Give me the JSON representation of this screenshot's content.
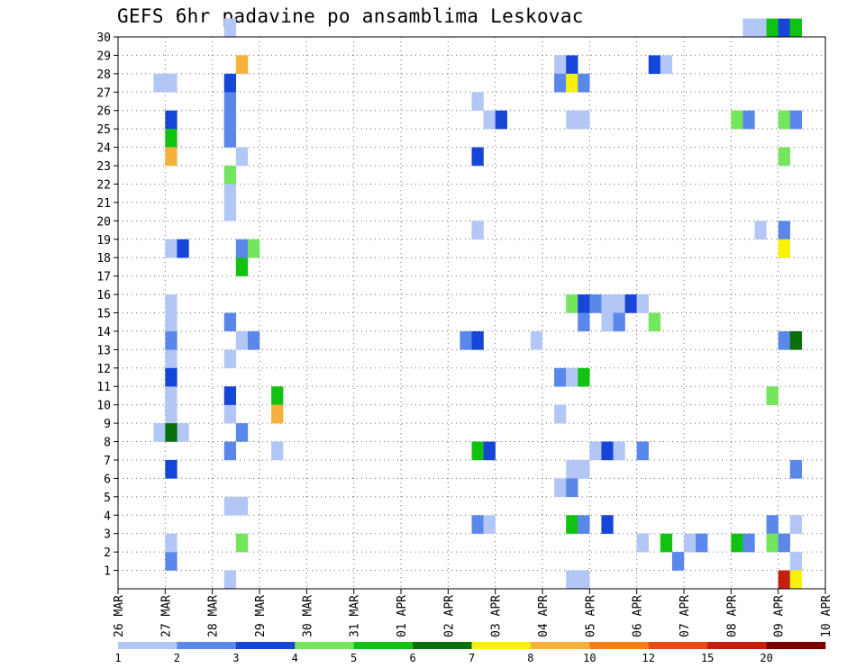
{
  "title": "GEFS 6hr padavine po ansamblima Leskovac",
  "chart_data": {
    "type": "heatmap",
    "title": "GEFS 6hr padavine po ansamblima Leskovac",
    "x_ticks": [
      "26 MAR",
      "27 MAR",
      "28 MAR",
      "29 MAR",
      "30 MAR",
      "31 MAR",
      "01 APR",
      "02 APR",
      "03 APR",
      "04 APR",
      "05 APR",
      "06 APR",
      "07 APR",
      "08 APR",
      "09 APR",
      "10 APR"
    ],
    "x_range": [
      0,
      60
    ],
    "y_ticks": [
      1,
      2,
      3,
      4,
      5,
      6,
      7,
      8,
      9,
      10,
      11,
      12,
      13,
      14,
      15,
      16,
      17,
      18,
      19,
      20,
      21,
      22,
      23,
      24,
      25,
      26,
      27,
      28,
      29,
      30
    ],
    "y_range": [
      0,
      30
    ],
    "grid": true,
    "legend": {
      "placement": "bottom",
      "labels": [
        "1",
        "2",
        "3",
        "4",
        "5",
        "6",
        "7",
        "8",
        "10",
        "12",
        "15",
        "20"
      ],
      "colors": [
        "#b3c7f7",
        "#5a87ea",
        "#1646d8",
        "#74e65c",
        "#12c212",
        "#0a6e0a",
        "#f9f10a",
        "#f5b13c",
        "#f57d14",
        "#e84a14",
        "#c41e0e",
        "#7a0000"
      ]
    },
    "color_by_class": {
      "1": "#b3c7f7",
      "2": "#5a87ea",
      "3": "#1646d8",
      "4": "#74e65c",
      "5": "#12c212",
      "6": "#0a6e0a",
      "7": "#f9f10a",
      "8": "#f5b13c",
      "10": "#f57d14",
      "12": "#e84a14",
      "15": "#c41e0e",
      "20": "#7a0000"
    },
    "cells": [
      [
        4,
        1,
        2
      ],
      [
        9,
        30,
        1
      ],
      [
        9,
        0,
        1
      ],
      [
        3,
        27,
        1
      ],
      [
        4,
        27,
        1
      ],
      [
        4,
        18,
        1
      ],
      [
        4,
        15,
        1
      ],
      [
        4,
        14,
        1
      ],
      [
        4,
        12,
        1
      ],
      [
        4,
        10,
        1
      ],
      [
        4,
        9,
        1
      ],
      [
        3,
        8,
        1
      ],
      [
        5,
        8,
        1
      ],
      [
        4,
        2,
        1
      ],
      [
        4,
        25,
        3
      ],
      [
        4,
        24,
        5
      ],
      [
        4,
        23,
        8
      ],
      [
        5,
        18,
        3
      ],
      [
        4,
        13,
        2
      ],
      [
        4,
        11,
        3
      ],
      [
        4,
        8,
        6
      ],
      [
        4,
        6,
        3
      ],
      [
        9,
        26,
        2
      ],
      [
        9,
        25,
        2
      ],
      [
        9,
        24,
        1
      ],
      [
        10,
        23,
        1
      ],
      [
        9,
        21,
        1
      ],
      [
        9,
        20,
        1
      ],
      [
        10,
        13,
        1
      ],
      [
        9,
        12,
        1
      ],
      [
        9,
        9,
        1
      ],
      [
        9,
        4,
        1
      ],
      [
        10,
        4,
        1
      ],
      [
        10,
        2,
        4
      ],
      [
        9,
        7,
        2
      ],
      [
        10,
        8,
        2
      ],
      [
        10,
        28,
        8
      ],
      [
        9,
        27,
        3
      ],
      [
        9,
        25,
        2
      ],
      [
        9,
        24,
        2
      ],
      [
        9,
        22,
        4
      ],
      [
        10,
        18,
        2
      ],
      [
        11,
        18,
        4
      ],
      [
        10,
        17,
        5
      ],
      [
        9,
        14,
        2
      ],
      [
        11,
        13,
        2
      ],
      [
        9,
        10,
        3
      ],
      [
        13,
        10,
        5
      ],
      [
        13,
        9,
        8
      ],
      [
        13,
        7,
        1
      ],
      [
        30,
        26,
        1
      ],
      [
        31,
        25,
        1
      ],
      [
        32,
        25,
        3
      ],
      [
        30,
        23,
        3
      ],
      [
        30,
        19,
        1
      ],
      [
        29,
        13,
        2
      ],
      [
        30,
        13,
        3
      ],
      [
        35,
        13,
        1
      ],
      [
        30,
        7,
        5
      ],
      [
        31,
        7,
        3
      ],
      [
        30,
        3,
        2
      ],
      [
        31,
        3,
        1
      ],
      [
        37,
        28,
        1
      ],
      [
        38,
        28,
        3
      ],
      [
        37,
        27,
        2
      ],
      [
        38,
        27,
        7
      ],
      [
        39,
        27,
        2
      ],
      [
        38,
        25,
        1
      ],
      [
        39,
        25,
        1
      ],
      [
        38,
        15,
        4
      ],
      [
        39,
        15,
        3
      ],
      [
        40,
        15,
        2
      ],
      [
        41,
        15,
        1
      ],
      [
        42,
        15,
        1
      ],
      [
        43,
        15,
        3
      ],
      [
        44,
        15,
        1
      ],
      [
        39,
        14,
        2
      ],
      [
        41,
        14,
        1
      ],
      [
        42,
        14,
        2
      ],
      [
        37,
        11,
        2
      ],
      [
        38,
        11,
        1
      ],
      [
        39,
        11,
        5
      ],
      [
        37,
        9,
        1
      ],
      [
        40,
        7,
        1
      ],
      [
        41,
        7,
        3
      ],
      [
        42,
        7,
        1
      ],
      [
        44,
        7,
        2
      ],
      [
        38,
        6,
        1
      ],
      [
        39,
        6,
        1
      ],
      [
        37,
        5,
        1
      ],
      [
        38,
        5,
        2
      ],
      [
        38,
        3,
        5
      ],
      [
        39,
        3,
        2
      ],
      [
        41,
        3,
        3
      ],
      [
        39,
        0,
        1
      ],
      [
        38,
        0,
        1
      ],
      [
        45,
        28,
        3
      ],
      [
        46,
        28,
        1
      ],
      [
        45,
        14,
        4
      ],
      [
        44,
        2,
        1
      ],
      [
        46,
        2,
        5
      ],
      [
        48,
        2,
        1
      ],
      [
        49,
        2,
        2
      ],
      [
        47,
        1,
        2
      ],
      [
        52,
        25,
        4
      ],
      [
        53,
        25,
        2
      ],
      [
        56,
        25,
        4
      ],
      [
        57,
        25,
        2
      ],
      [
        53,
        30,
        1
      ],
      [
        54,
        30,
        1
      ],
      [
        55,
        30,
        5
      ],
      [
        56,
        30,
        3
      ],
      [
        57,
        30,
        5
      ],
      [
        56,
        23,
        4
      ],
      [
        54,
        19,
        1
      ],
      [
        56,
        19,
        2
      ],
      [
        56,
        18,
        7
      ],
      [
        55,
        10,
        4
      ],
      [
        56,
        13,
        2
      ],
      [
        57,
        13,
        6
      ],
      [
        57,
        6,
        2
      ],
      [
        55,
        3,
        2
      ],
      [
        57,
        3,
        1
      ],
      [
        52,
        2,
        5
      ],
      [
        53,
        2,
        2
      ],
      [
        55,
        2,
        4
      ],
      [
        56,
        2,
        2
      ],
      [
        57,
        1,
        1
      ],
      [
        56,
        0,
        15
      ],
      [
        57,
        0,
        7
      ]
    ]
  }
}
